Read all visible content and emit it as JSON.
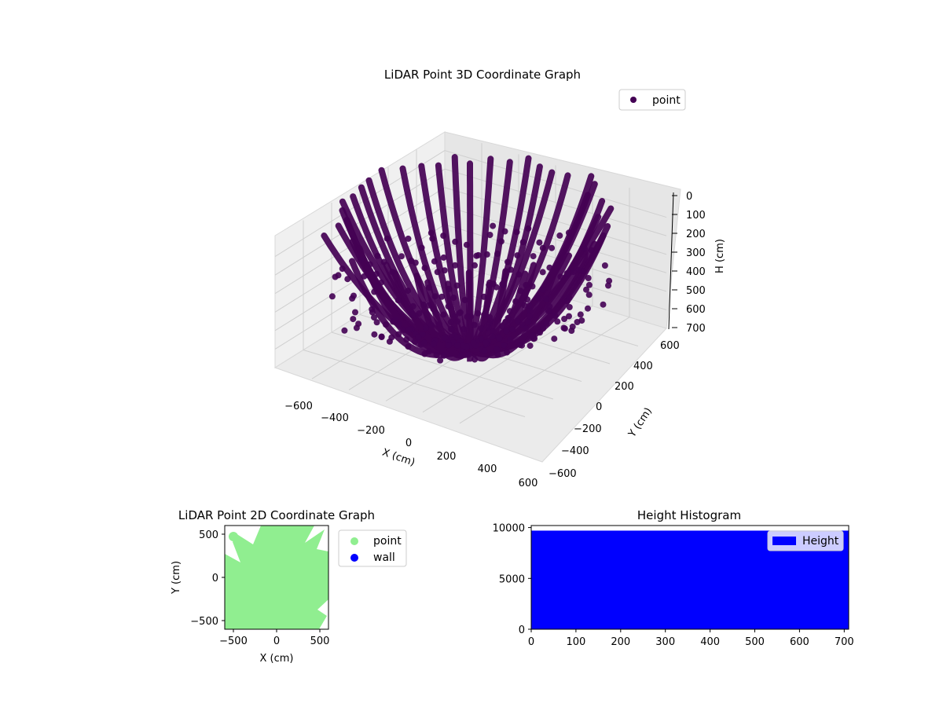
{
  "chart_data": [
    {
      "type": "scatter",
      "title": "LiDAR Point 3D Coordinate Graph",
      "xlabel": "X (cm)",
      "ylabel": "Y (cm)",
      "zlabel": "H (cm)",
      "xlim": [
        -600,
        600
      ],
      "ylim": [
        -600,
        600
      ],
      "zlim": [
        0,
        700
      ],
      "z_inverted": true,
      "x_ticks": [
        "−600",
        "−400",
        "−200",
        "0",
        "200",
        "400",
        "600"
      ],
      "y_ticks": [
        "−600",
        "−400",
        "−200",
        "0",
        "200",
        "400",
        "600"
      ],
      "z_ticks": [
        "0",
        "100",
        "200",
        "300",
        "400",
        "500",
        "600",
        "700"
      ],
      "legend": {
        "position": "top-right",
        "entries": [
          "point"
        ]
      },
      "series": [
        {
          "name": "point",
          "color": "#440154",
          "pattern": "radial arcs of scan points from center (0,0,0) outward to radius ~600 cm"
        }
      ]
    },
    {
      "type": "scatter",
      "title": "LiDAR Point 2D Coordinate Graph",
      "xlabel": "X (cm)",
      "ylabel": "Y (cm)",
      "xlim": [
        -600,
        600
      ],
      "ylim": [
        -600,
        600
      ],
      "x_ticks": [
        "−500",
        "0",
        "500"
      ],
      "y_ticks": [
        "−500",
        "0",
        "500"
      ],
      "legend": {
        "position": "outside-right",
        "entries": [
          "point",
          "wall"
        ]
      },
      "series": [
        {
          "name": "point",
          "color": "#90ee90"
        },
        {
          "name": "wall",
          "color": "#0000ff"
        }
      ]
    },
    {
      "type": "bar",
      "title": "Height Histogram",
      "xlim": [
        0,
        710
      ],
      "ylim": [
        0,
        10200
      ],
      "x_ticks": [
        "0",
        "100",
        "200",
        "300",
        "400",
        "500",
        "600",
        "700"
      ],
      "y_ticks": [
        "0",
        "5000",
        "10000"
      ],
      "legend": {
        "position": "top-right",
        "entries": [
          "Height"
        ]
      },
      "series": [
        {
          "name": "Height",
          "color": "#0000ff",
          "bins": [
            [
              0,
              710,
              9700
            ]
          ]
        }
      ]
    }
  ]
}
